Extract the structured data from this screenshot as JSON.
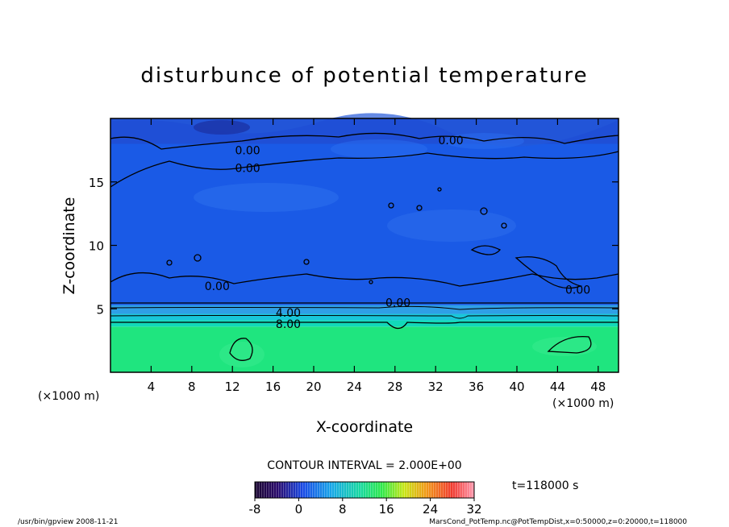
{
  "chart_data": {
    "type": "heatmap",
    "title": "disturbunce of potential temperature",
    "xlabel": "X-coordinate",
    "ylabel": "Z-coordinate",
    "x_unit_left": "(×1000 m)",
    "x_unit_right": "(×1000 m)",
    "xlim": [
      0,
      50
    ],
    "ylim": [
      0,
      20
    ],
    "x_ticks": [
      4,
      8,
      12,
      16,
      20,
      24,
      28,
      32,
      36,
      40,
      44,
      48
    ],
    "y_ticks": [
      5,
      10,
      15
    ],
    "contour_interval": "CONTOUR INTERVAL = 2.000E+00",
    "time_label": "t=118000 s",
    "colorbar": {
      "min": -8,
      "max": 32,
      "ticks": [
        -8,
        0,
        8,
        16,
        24,
        32
      ]
    },
    "contour_labels": [
      {
        "text": "0.00",
        "x": 13.5,
        "y": 17.5
      },
      {
        "text": "0.00",
        "x": 13.5,
        "y": 16.1
      },
      {
        "text": "0.00",
        "x": 33.5,
        "y": 18.3
      },
      {
        "text": "0.00",
        "x": 10.5,
        "y": 6.8
      },
      {
        "text": "0.00",
        "x": 28.3,
        "y": 5.5
      },
      {
        "text": "0.00",
        "x": 46.0,
        "y": 6.5
      },
      {
        "text": "4.00",
        "x": 17.5,
        "y": 4.7
      },
      {
        "text": "8.00",
        "x": 17.5,
        "y": 3.8
      }
    ],
    "layers": [
      {
        "z_min": 0,
        "z_max": 3.6,
        "value": 10,
        "color": "#1fe57f"
      },
      {
        "z_min": 3.6,
        "z_max": 4.1,
        "value": 8,
        "color": "#12d9b9"
      },
      {
        "z_min": 4.1,
        "z_max": 4.6,
        "value": 6,
        "color": "#18c6d9"
      },
      {
        "z_min": 4.6,
        "z_max": 5.3,
        "value": 3,
        "color": "#2f9fe6"
      },
      {
        "z_min": 5.3,
        "z_max": 18.0,
        "value": 0,
        "color": "#1a5ae6"
      },
      {
        "z_min": 18.0,
        "z_max": 20,
        "value": -1,
        "color": "#1f4fd6"
      }
    ]
  },
  "footer": {
    "left": "/usr/bin/gpview   2008-11-21",
    "right": "MarsCond_PotTemp.nc@PotTempDist,x=0:50000,z=0:20000,t=118000"
  }
}
